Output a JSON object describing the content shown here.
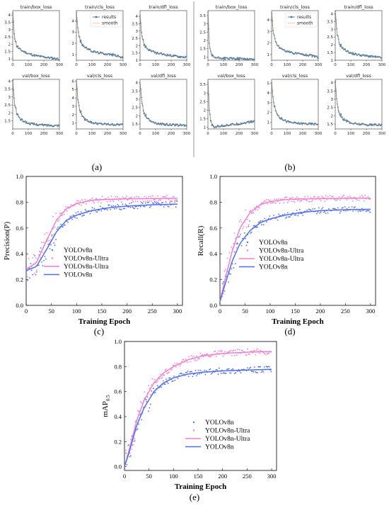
{
  "panels": {
    "a": "(a)",
    "b": "(b)",
    "c": "(c)",
    "d": "(d)",
    "e": "(e)"
  },
  "colors": {
    "loss": "#3b75af",
    "smooth": "#f0a030",
    "v8n": "#4f6ff0",
    "ultra": "#f07fd2"
  },
  "chart_data": [
    {
      "panel": "a",
      "type": "line",
      "legend": [
        "results",
        "smooth"
      ],
      "legend_position": "top-right",
      "subplots": [
        {
          "title": "train/box_loss",
          "xlim": [
            0,
            300
          ],
          "ylim": [
            0.9,
            4.3
          ],
          "yticks": [
            1.0,
            1.5,
            2.0,
            2.5,
            3.0,
            3.5,
            4.0
          ],
          "xticks": [
            0,
            100,
            200,
            300
          ],
          "x": [
            1,
            10,
            25,
            50,
            100,
            150,
            200,
            250,
            300
          ],
          "y": [
            4.1,
            2.6,
            1.9,
            1.6,
            1.35,
            1.2,
            1.12,
            1.05,
            0.98
          ]
        },
        {
          "title": "train/cls_loss",
          "xlim": [
            0,
            300
          ],
          "ylim": [
            0.5,
            4.9
          ],
          "yticks": [
            1,
            2,
            3,
            4
          ],
          "xticks": [
            0,
            100,
            200,
            300
          ],
          "x": [
            1,
            10,
            25,
            50,
            100,
            150,
            200,
            250,
            300
          ],
          "y": [
            4.8,
            3.1,
            2.2,
            1.7,
            1.3,
            1.15,
            1.05,
            0.95,
            0.7
          ]
        },
        {
          "title": "train/dfl_loss",
          "xlim": [
            0,
            300
          ],
          "ylim": [
            1.0,
            4.4
          ],
          "yticks": [
            1.0,
            1.5,
            2.0,
            2.5,
            3.0,
            3.5,
            4.0
          ],
          "xticks": [
            0,
            100,
            200,
            300
          ],
          "x": [
            1,
            10,
            25,
            50,
            100,
            150,
            200,
            250,
            300
          ],
          "y": [
            4.2,
            2.8,
            2.1,
            1.75,
            1.5,
            1.4,
            1.32,
            1.25,
            1.2
          ]
        },
        {
          "title": "val/box_loss",
          "xlim": [
            0,
            300
          ],
          "ylim": [
            1.0,
            4.1
          ],
          "yticks": [
            1.5,
            2.0,
            2.5,
            3.0,
            3.5,
            4.0
          ],
          "xticks": [
            0,
            100,
            200,
            300
          ],
          "x": [
            1,
            10,
            25,
            50,
            100,
            150,
            200,
            250,
            300
          ],
          "y": [
            4.0,
            2.7,
            2.0,
            1.6,
            1.35,
            1.28,
            1.24,
            1.22,
            1.22
          ]
        },
        {
          "title": "val/cls_loss",
          "xlim": [
            0,
            300
          ],
          "ylim": [
            0.3,
            6.2
          ],
          "yticks": [
            1,
            2,
            3,
            4,
            5,
            6
          ],
          "xticks": [
            0,
            100,
            200,
            300
          ],
          "x": [
            1,
            10,
            25,
            50,
            100,
            150,
            200,
            250,
            300
          ],
          "y": [
            6.0,
            3.6,
            2.4,
            1.5,
            1.05,
            0.9,
            0.85,
            0.82,
            0.8
          ]
        },
        {
          "title": "val/dfl_loss",
          "xlim": [
            0,
            300
          ],
          "ylim": [
            1.2,
            4.2
          ],
          "yticks": [
            1.5,
            2.0,
            2.5,
            3.0,
            3.5,
            4.0
          ],
          "xticks": [
            0,
            100,
            200,
            300
          ],
          "x": [
            1,
            10,
            25,
            50,
            100,
            150,
            200,
            250,
            300
          ],
          "y": [
            4.0,
            2.9,
            2.2,
            1.8,
            1.55,
            1.48,
            1.45,
            1.43,
            1.42
          ]
        }
      ]
    },
    {
      "panel": "b",
      "type": "line",
      "legend": [
        "results",
        "smooth"
      ],
      "legend_position": "top-right",
      "subplots": [
        {
          "title": "train/box_loss",
          "xlim": [
            0,
            300
          ],
          "ylim": [
            0.8,
            3.8
          ],
          "yticks": [
            1.0,
            1.5,
            2.0,
            2.5,
            3.0,
            3.5
          ],
          "xticks": [
            0,
            100,
            200,
            300
          ],
          "x": [
            1,
            10,
            25,
            50,
            100,
            150,
            200,
            250,
            300
          ],
          "y": [
            3.7,
            1.5,
            1.05,
            0.95,
            0.92,
            0.9,
            0.9,
            0.88,
            0.85
          ]
        },
        {
          "title": "train/cls_loss",
          "xlim": [
            0,
            300
          ],
          "ylim": [
            0.5,
            4.8
          ],
          "yticks": [
            1,
            2,
            3,
            4
          ],
          "xticks": [
            0,
            100,
            200,
            300
          ],
          "x": [
            1,
            10,
            25,
            50,
            100,
            150,
            200,
            250,
            300
          ],
          "y": [
            4.7,
            2.9,
            2.1,
            1.6,
            1.25,
            1.1,
            1.0,
            0.92,
            0.75
          ]
        },
        {
          "title": "train/dfl_loss",
          "xlim": [
            0,
            300
          ],
          "ylim": [
            1.0,
            4.2
          ],
          "yticks": [
            1.0,
            1.5,
            2.0,
            2.5,
            3.0,
            3.5,
            4.0
          ],
          "xticks": [
            0,
            100,
            200,
            300
          ],
          "x": [
            1,
            10,
            25,
            50,
            100,
            150,
            200,
            250,
            300
          ],
          "y": [
            4.1,
            2.8,
            2.1,
            1.75,
            1.45,
            1.35,
            1.28,
            1.22,
            1.15
          ]
        },
        {
          "title": "val/box_loss",
          "xlim": [
            0,
            300
          ],
          "ylim": [
            0.9,
            3.8
          ],
          "yticks": [
            1.0,
            1.5,
            2.0,
            2.5,
            3.0,
            3.5
          ],
          "xticks": [
            0,
            100,
            200,
            300
          ],
          "x": [
            1,
            10,
            25,
            40,
            60,
            100,
            150,
            200,
            250,
            300
          ],
          "y": [
            3.6,
            1.8,
            1.1,
            1.0,
            1.05,
            1.1,
            1.15,
            1.2,
            1.28,
            1.35
          ]
        },
        {
          "title": "val/cls_loss",
          "xlim": [
            0,
            300
          ],
          "ylim": [
            0.3,
            5.4
          ],
          "yticks": [
            1,
            2,
            3,
            4,
            5
          ],
          "xticks": [
            0,
            100,
            200,
            300
          ],
          "x": [
            1,
            10,
            25,
            50,
            100,
            150,
            200,
            250,
            300
          ],
          "y": [
            5.2,
            3.2,
            2.2,
            1.5,
            1.05,
            0.9,
            0.85,
            0.82,
            0.8
          ]
        },
        {
          "title": "val/dfl_loss",
          "xlim": [
            0,
            300
          ],
          "ylim": [
            1.2,
            4.2
          ],
          "yticks": [
            1.5,
            2.0,
            2.5,
            3.0,
            3.5,
            4.0
          ],
          "xticks": [
            0,
            100,
            200,
            300
          ],
          "x": [
            1,
            10,
            25,
            50,
            100,
            150,
            200,
            250,
            300
          ],
          "y": [
            4.0,
            2.9,
            2.2,
            1.8,
            1.55,
            1.5,
            1.46,
            1.45,
            1.45
          ]
        }
      ]
    },
    {
      "panel": "c",
      "type": "scatter",
      "xlabel": "Training Epoch",
      "ylabel": "Precision(P)",
      "xlim": [
        0,
        310
      ],
      "ylim": [
        0.0,
        1.0
      ],
      "xticks": [
        0,
        50,
        100,
        150,
        200,
        250,
        300
      ],
      "yticks": [
        0.0,
        0.2,
        0.4,
        0.6,
        0.8,
        1.0
      ],
      "legend_position": "center-left",
      "legend": [
        {
          "label": "YOLOv8n",
          "kind": "points",
          "color": "v8n"
        },
        {
          "label": "YOLOv8n-Ultra",
          "kind": "points",
          "color": "ultra"
        },
        {
          "label": "YOLOv8n-Ultra",
          "kind": "line",
          "color": "ultra"
        },
        {
          "label": "YOLOv8n",
          "kind": "line",
          "color": "v8n"
        }
      ],
      "series": [
        {
          "name": "YOLOv8n-Ultra",
          "color": "ultra",
          "x": [
            0,
            20,
            40,
            60,
            80,
            100,
            130,
            160,
            200,
            250,
            300
          ],
          "y": [
            0.28,
            0.33,
            0.5,
            0.66,
            0.75,
            0.79,
            0.815,
            0.822,
            0.826,
            0.828,
            0.83
          ]
        },
        {
          "name": "YOLOv8n",
          "color": "v8n",
          "x": [
            0,
            20,
            40,
            60,
            80,
            100,
            130,
            160,
            200,
            250,
            300
          ],
          "y": [
            0.27,
            0.3,
            0.43,
            0.57,
            0.66,
            0.7,
            0.735,
            0.755,
            0.77,
            0.78,
            0.785
          ]
        }
      ]
    },
    {
      "panel": "d",
      "type": "scatter",
      "xlabel": "Training Epoch",
      "ylabel": "Recall(R)",
      "xlim": [
        0,
        310
      ],
      "ylim": [
        0.0,
        1.0
      ],
      "xticks": [
        0,
        50,
        100,
        150,
        200,
        250,
        300
      ],
      "yticks": [
        0.0,
        0.2,
        0.4,
        0.6,
        0.8,
        1.0
      ],
      "legend_position": "center-right",
      "legend": [
        {
          "label": "YOLOv8n",
          "kind": "points",
          "color": "v8n"
        },
        {
          "label": "YOLOv8n-Ultra",
          "kind": "points",
          "color": "ultra"
        },
        {
          "label": "YOLOv8n-Ultra",
          "kind": "line",
          "color": "ultra"
        },
        {
          "label": "YOLOv8n",
          "kind": "line",
          "color": "v8n"
        }
      ],
      "series": [
        {
          "name": "YOLOv8n-Ultra",
          "color": "ultra",
          "x": [
            0,
            10,
            25,
            40,
            60,
            80,
            100,
            130,
            160,
            200,
            250,
            300
          ],
          "y": [
            0.03,
            0.2,
            0.43,
            0.6,
            0.72,
            0.78,
            0.805,
            0.82,
            0.825,
            0.828,
            0.83,
            0.832
          ]
        },
        {
          "name": "YOLOv8n",
          "color": "v8n",
          "x": [
            0,
            10,
            25,
            40,
            60,
            80,
            100,
            130,
            160,
            200,
            250,
            300
          ],
          "y": [
            0.03,
            0.16,
            0.35,
            0.48,
            0.58,
            0.64,
            0.67,
            0.7,
            0.72,
            0.735,
            0.742,
            0.745
          ]
        }
      ]
    },
    {
      "panel": "e",
      "type": "scatter",
      "xlabel": "Training Epoch",
      "ylabel": "mAP",
      "ylabel_sub": "0.5",
      "xlim": [
        0,
        310
      ],
      "ylim": [
        -0.03,
        1.0
      ],
      "xticks": [
        0,
        50,
        100,
        150,
        200,
        250,
        300
      ],
      "yticks": [
        0.0,
        0.2,
        0.4,
        0.6,
        0.8,
        1.0
      ],
      "legend_position": "center-right",
      "legend": [
        {
          "label": "YOLOv8n",
          "kind": "points",
          "color": "v8n"
        },
        {
          "label": "YOLOv8n-Ultra",
          "kind": "points",
          "color": "ultra"
        },
        {
          "label": "YOLOv8n-Ultra",
          "kind": "line",
          "color": "ultra"
        },
        {
          "label": "YOLOv8n",
          "kind": "line",
          "color": "v8n"
        }
      ],
      "series": [
        {
          "name": "YOLOv8n-Ultra",
          "color": "ultra",
          "x": [
            0,
            10,
            25,
            40,
            60,
            80,
            100,
            130,
            160,
            200,
            250,
            300
          ],
          "y": [
            0.0,
            0.14,
            0.37,
            0.53,
            0.67,
            0.75,
            0.8,
            0.855,
            0.885,
            0.905,
            0.915,
            0.92
          ]
        },
        {
          "name": "YOLOv8n",
          "color": "v8n",
          "x": [
            0,
            10,
            25,
            40,
            60,
            80,
            100,
            130,
            160,
            200,
            250,
            300
          ],
          "y": [
            0.0,
            0.12,
            0.33,
            0.47,
            0.6,
            0.67,
            0.71,
            0.74,
            0.755,
            0.765,
            0.772,
            0.778
          ]
        }
      ]
    }
  ]
}
